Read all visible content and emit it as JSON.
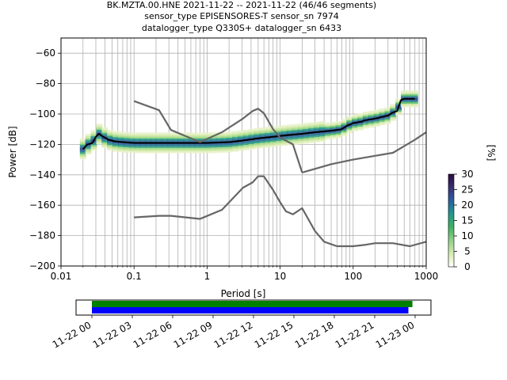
{
  "chart_data": {
    "type": "line",
    "title_lines": [
      "BK.MZTA.00.HNE   2021-11-22 -- 2021-11-22  (46/46 segments)",
      "sensor_type EPISENSORES-T sensor_sn 7974",
      "datalogger_type Q330S+ datalogger_sn 6433"
    ],
    "xlabel": "Period [s]",
    "ylabel": "Power [dB]",
    "xscale": "log",
    "xlim": [
      0.01,
      1000
    ],
    "ylim": [
      -200,
      -50
    ],
    "x_ticks": [
      0.01,
      0.1,
      1,
      10,
      100,
      1000
    ],
    "x_tick_labels": [
      "0.01",
      "0.1",
      "1",
      "10",
      "100",
      "1000"
    ],
    "y_ticks": [
      -200,
      -180,
      -160,
      -140,
      -120,
      -100,
      -80,
      -60
    ],
    "y_tick_labels": [
      "−200",
      "−180",
      "−160",
      "−140",
      "−120",
      "−100",
      "−80",
      "−60"
    ],
    "grid": true,
    "series": [
      {
        "color": "#000000",
        "x": [
          0.02,
          0.023,
          0.027,
          0.03,
          0.033,
          0.038,
          0.045,
          0.055,
          0.07,
          0.1,
          0.2,
          0.5,
          1,
          2,
          3,
          5,
          8,
          12,
          20,
          30,
          50,
          70,
          80,
          100,
          130,
          150,
          200,
          300,
          350,
          400,
          450,
          500,
          600,
          700
        ],
        "y": [
          -123,
          -120,
          -119,
          -115,
          -113,
          -115,
          -117,
          -118,
          -118.5,
          -119,
          -119,
          -119,
          -119,
          -118.5,
          -117.5,
          -116,
          -115,
          -114,
          -113,
          -112,
          -111,
          -110,
          -108,
          -106,
          -105,
          -104,
          -103,
          -101,
          -99,
          -98,
          -91,
          -90,
          -90,
          -90
        ]
      },
      {
        "color": "#666666",
        "x": [
          0.1,
          0.22,
          0.32,
          0.8,
          1.6,
          3.1,
          4.2,
          5,
          6,
          8,
          10,
          12,
          15,
          20
        ],
        "y": [
          -91.5,
          -97.5,
          -110.5,
          -118.5,
          -112,
          -103,
          -98,
          -96.5,
          -99.5,
          -110,
          -115.5,
          -117.5,
          -120,
          -138.5
        ]
      },
      {
        "color": "#666666",
        "x": [
          20,
          50,
          100,
          200,
          350,
          700,
          1000
        ],
        "y": [
          -138.5,
          -133,
          -130,
          -127.5,
          -125.5,
          -117,
          -112
        ]
      },
      {
        "color": "#666666",
        "x": [
          0.1,
          0.22,
          0.32,
          0.8,
          1.6,
          3.1,
          4.2,
          5,
          6,
          8,
          10,
          12,
          15,
          20,
          30,
          40,
          60,
          80,
          100,
          150,
          200,
          350,
          600,
          1000
        ],
        "y": [
          -168,
          -167,
          -167,
          -169,
          -163,
          -148.5,
          -145,
          -141,
          -141,
          -150,
          -158,
          -164,
          -166,
          -162,
          -177,
          -184,
          -187,
          -187,
          -187,
          -186,
          -185,
          -185,
          -187,
          -184
        ]
      }
    ],
    "colorbar": {
      "label": "[%]",
      "range": [
        0,
        30
      ],
      "ticks": [
        0,
        5,
        10,
        15,
        20,
        25,
        30
      ],
      "colormap": [
        "#ffffff",
        "#d6ebb0",
        "#8fd18a",
        "#3fb25f",
        "#21978f",
        "#2b5fa1",
        "#3a3075",
        "#2a0a3e"
      ]
    },
    "data_coverage": {
      "tick_labels": [
        "11-22 00",
        "11-22 03",
        "11-22 06",
        "11-22 09",
        "11-22 12",
        "11-22 15",
        "11-22 18",
        "11-22 21",
        "11-23 00"
      ],
      "start_hours": 0,
      "end_hours": 24,
      "bars": [
        {
          "color": "#008000",
          "start_hour": 0.0,
          "end_hour": 23.8
        },
        {
          "color": "#0000ff",
          "start_hour": 0.0,
          "end_hour": 23.5
        }
      ]
    }
  }
}
